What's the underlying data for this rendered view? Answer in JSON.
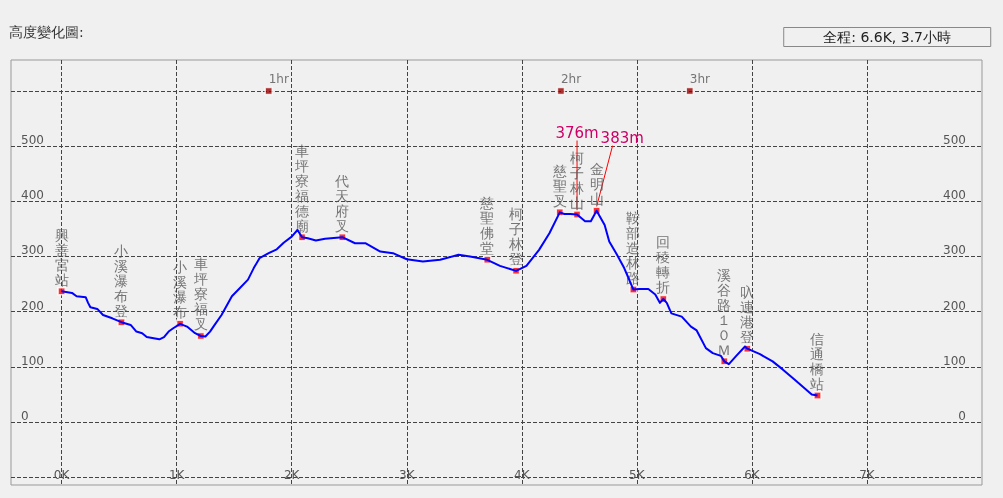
{
  "chart_data": {
    "type": "line",
    "title": "高度變化圖:",
    "subtitle": "全程: 6.6K, 3.7小時",
    "xlim": [
      -0.44,
      8
    ],
    "xticks": [
      {
        "value": 0,
        "label": "0K"
      },
      {
        "value": 1,
        "label": "1K"
      },
      {
        "value": 2,
        "label": "2K"
      },
      {
        "value": 3,
        "label": "3K"
      },
      {
        "value": 4,
        "label": "4K"
      },
      {
        "value": 5,
        "label": "5K"
      },
      {
        "value": 6,
        "label": "6K"
      },
      {
        "value": 7,
        "label": "7K"
      }
    ],
    "ylim": [
      -114,
      656
    ],
    "yticks": [
      {
        "value": -100,
        "label": null
      },
      0,
      100,
      200,
      300,
      400,
      500,
      {
        "value": 600,
        "label": null
      }
    ],
    "y2lim": [
      -114,
      656
    ],
    "y2ticks": [
      0,
      100,
      200,
      300,
      400,
      500
    ],
    "grid": true,
    "series": [
      {
        "color": "#0000ff",
        "x": [
          0,
          0.09,
          0.13,
          0.21,
          0.23,
          0.25,
          0.31,
          0.36,
          0.44,
          0.52,
          0.6,
          0.65,
          0.7,
          0.74,
          0.8,
          0.85,
          0.89,
          0.93,
          0.97,
          1.03,
          1.09,
          1.16,
          1.21,
          1.25,
          1.29,
          1.33,
          1.39,
          1.48,
          1.55,
          1.62,
          1.67,
          1.72,
          1.8,
          1.87,
          1.93,
          2.0,
          2.05,
          2.09,
          2.14,
          2.21,
          2.29,
          2.44,
          2.55,
          2.64,
          2.77,
          2.88,
          3.0,
          3.14,
          3.29,
          3.45,
          3.55,
          3.7,
          3.81,
          3.95,
          4.04,
          4.15,
          4.24,
          4.33,
          4.37,
          4.42,
          4.48,
          4.55,
          4.6,
          4.65,
          4.72,
          4.76,
          4.82,
          4.89,
          4.97,
          5.02,
          5.1,
          5.16,
          5.2,
          5.23,
          5.26,
          5.3,
          5.39,
          5.47,
          5.52,
          5.6,
          5.66,
          5.73,
          5.76,
          5.8,
          5.86,
          5.94,
          5.96,
          6.07,
          6.18,
          6.27,
          6.37,
          6.47,
          6.52,
          6.57
        ],
        "values": [
          237,
          234,
          228,
          226,
          216,
          208,
          205,
          194,
          188,
          181,
          176,
          164,
          161,
          154,
          152,
          150,
          154,
          164,
          170,
          178,
          173,
          161,
          156,
          155,
          164,
          176,
          194,
          228,
          243,
          258,
          279,
          297,
          306,
          313,
          325,
          336,
          348,
          335,
          333,
          329,
          332,
          335,
          324,
          324,
          309,
          306,
          295,
          291,
          294,
          303,
          300,
          294,
          283,
          274,
          283,
          312,
          342,
          380,
          377,
          377,
          376,
          364,
          364,
          383,
          357,
          327,
          306,
          279,
          240,
          241,
          241,
          231,
          216,
          223,
          216,
          197,
          191,
          173,
          166,
          134,
          125,
          120,
          110,
          105,
          119,
          137,
          133,
          123,
          110,
          95,
          77,
          59,
          50,
          48
        ]
      },
      {
        "type": "scatter",
        "marker": "square",
        "color": "#ff0000",
        "x": [
          0,
          0.52,
          1.03,
          1.21,
          2.09,
          2.44,
          3.7,
          3.95,
          4.33,
          4.48,
          4.65,
          4.97,
          5.23,
          5.76,
          5.96,
          6.57
        ],
        "values": [
          237,
          181,
          178,
          156,
          335,
          335,
          294,
          274,
          380,
          376,
          383,
          240,
          223,
          110,
          133,
          48
        ]
      },
      {
        "type": "scatter",
        "marker": "square",
        "color": "#990000",
        "x": [
          1.8,
          4.34,
          5.46
        ],
        "values": [
          600,
          600,
          600
        ]
      }
    ],
    "annotations": [
      {
        "text": "1hr",
        "x": 1.8,
        "y": 600
      },
      {
        "text": "2hr",
        "x": 4.34,
        "y": 600
      },
      {
        "text": "3hr",
        "x": 5.46,
        "y": 600
      },
      {
        "text": "376m",
        "x": 4.48,
        "y": 376
      },
      {
        "text": "383m",
        "x": 4.65,
        "y": 383
      },
      {
        "text": "興善宮站",
        "x": 0,
        "y": 237
      },
      {
        "text": "小溪瀑布登",
        "x": 0.52,
        "y": 181
      },
      {
        "text": "小溪瀑布",
        "x": 1.03,
        "y": 178
      },
      {
        "text": "車坪寮福叉",
        "x": 1.21,
        "y": 156
      },
      {
        "text": "車坪寮福德廟",
        "x": 2.09,
        "y": 335
      },
      {
        "text": "代天府叉",
        "x": 2.44,
        "y": 335
      },
      {
        "text": "慈聖佛堂",
        "x": 3.7,
        "y": 294
      },
      {
        "text": "柯子林登",
        "x": 3.95,
        "y": 274
      },
      {
        "text": "慈聖叉",
        "x": 4.33,
        "y": 380
      },
      {
        "text": "柯子林山",
        "x": 4.48,
        "y": 376
      },
      {
        "text": "金明山",
        "x": 4.65,
        "y": 383
      },
      {
        "text": "鞍部造林路",
        "x": 4.97,
        "y": 240
      },
      {
        "text": "回稜轉折",
        "x": 5.23,
        "y": 223
      },
      {
        "text": "溪谷路１０Ｍ",
        "x": 5.76,
        "y": 110
      },
      {
        "text": "叺連港登",
        "x": 5.96,
        "y": 133
      },
      {
        "text": "信通橋站",
        "x": 6.57,
        "y": 48
      }
    ]
  }
}
